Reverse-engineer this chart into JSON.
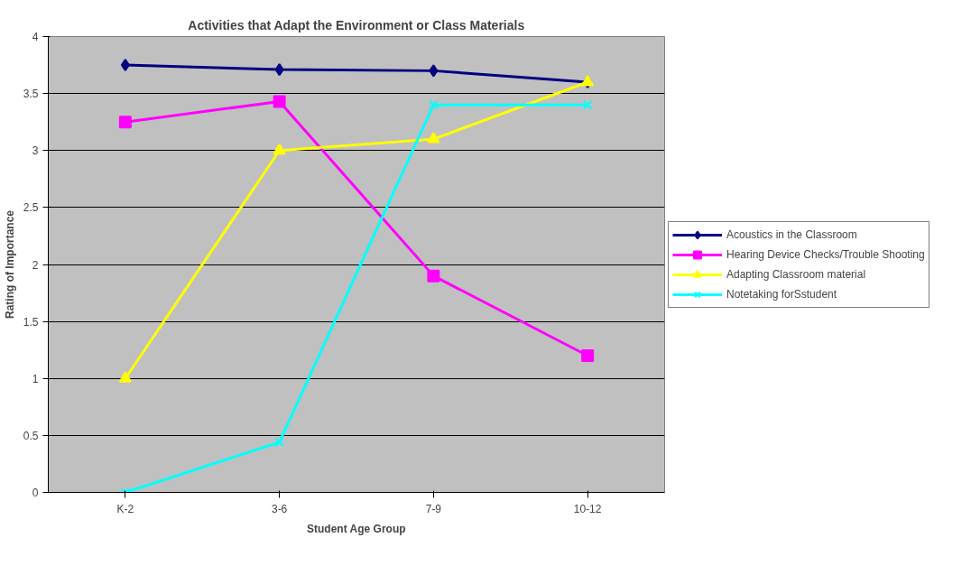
{
  "chart_data": {
    "type": "line",
    "title": "Activities that Adapt the Environment or Class Materials",
    "xlabel": "Student Age Group",
    "ylabel": "Rating of Importance",
    "categories": [
      "K-2",
      "3-6",
      "7-9",
      "10-12"
    ],
    "series": [
      {
        "name": "Acoustics in the Classroom",
        "color": "#000080",
        "marker": "diamond",
        "values": [
          3.75,
          3.71,
          3.7,
          3.6
        ]
      },
      {
        "name": "Hearing Device Checks/Trouble Shooting",
        "color": "#ff00ff",
        "marker": "square",
        "values": [
          3.25,
          3.43,
          1.9,
          1.2
        ]
      },
      {
        "name": "Adapting Classroom material",
        "color": "#ffff00",
        "marker": "triangle",
        "values": [
          1.0,
          3.0,
          3.1,
          3.6
        ]
      },
      {
        "name": "Notetaking forSstudent",
        "color": "#00ffff",
        "marker": "cross",
        "values": [
          0.0,
          0.44,
          3.4,
          3.4
        ]
      }
    ],
    "ylim": [
      0,
      4
    ],
    "yticks": [
      0,
      0.5,
      1,
      1.5,
      2,
      2.5,
      3,
      3.5,
      4
    ],
    "grid": "y",
    "legend": "right",
    "line_style": "solid"
  }
}
